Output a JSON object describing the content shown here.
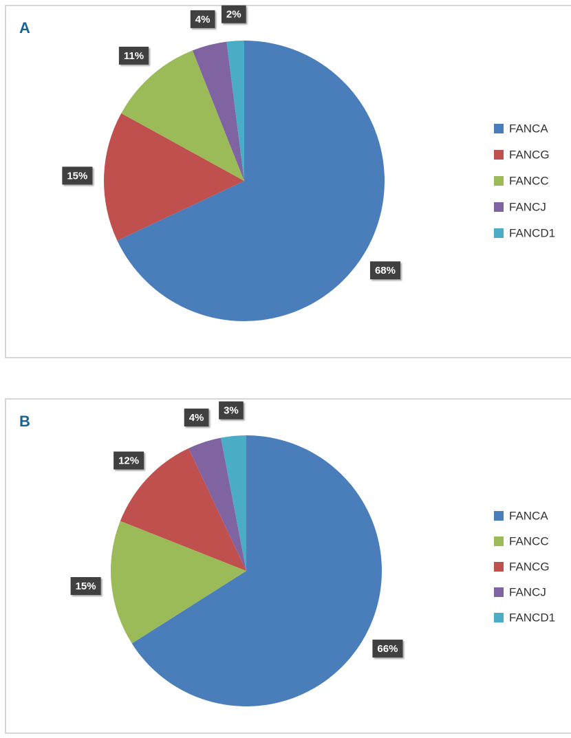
{
  "chart_data": [
    {
      "type": "pie",
      "title": "A",
      "categories": [
        "FANCA",
        "FANCG",
        "FANCC",
        "FANCJ",
        "FANCD1"
      ],
      "values": [
        68,
        15,
        11,
        4,
        2
      ],
      "value_labels": [
        "68%",
        "15%",
        "11%",
        "4%",
        "2%"
      ],
      "colors": [
        "#4a7ebb",
        "#c0504d",
        "#9bbb59",
        "#8064a2",
        "#4bacc6"
      ]
    },
    {
      "type": "pie",
      "title": "B",
      "categories": [
        "FANCA",
        "FANCC",
        "FANCG",
        "FANCJ",
        "FANCD1"
      ],
      "values": [
        66,
        15,
        12,
        4,
        3
      ],
      "value_labels": [
        "66%",
        "15%",
        "12%",
        "4%",
        "3%"
      ],
      "colors": [
        "#4a7ebb",
        "#9bbb59",
        "#c0504d",
        "#8064a2",
        "#4bacc6"
      ]
    }
  ]
}
